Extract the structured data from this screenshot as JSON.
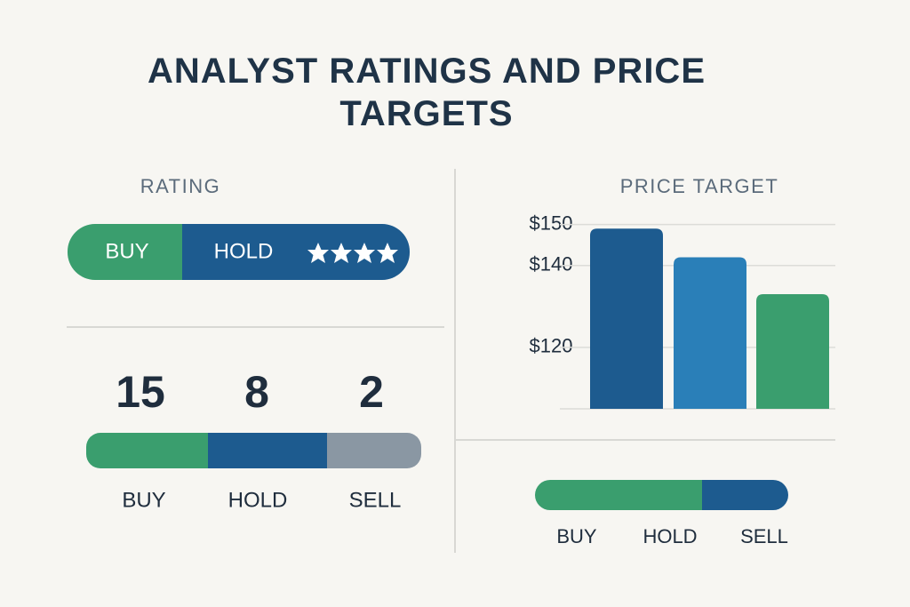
{
  "title": "ANALYST RATINGS AND PRICE TARGETS",
  "rating": {
    "heading": "RATING",
    "pill": {
      "buy": "BUY",
      "hold": "HOLD"
    },
    "counts": [
      {
        "label": "BUY",
        "value": 15
      },
      {
        "label": "HOLD",
        "value": 8
      },
      {
        "label": "SELL",
        "value": 2
      }
    ]
  },
  "price_target": {
    "heading": "PRICE TARGET",
    "chart_data": {
      "type": "bar",
      "values": [
        149,
        142,
        133
      ],
      "colors": [
        "#1d5b8f",
        "#2a7fb8",
        "#3a9e6e"
      ],
      "ylim": [
        105,
        151
      ],
      "yticks": [
        {
          "value": 150,
          "label": "$150"
        },
        {
          "value": 140,
          "label": "$140"
        },
        {
          "value": 120,
          "label": "$120"
        }
      ],
      "grid": true
    },
    "legend": [
      "BUY",
      "HOLD",
      "SELL"
    ]
  }
}
